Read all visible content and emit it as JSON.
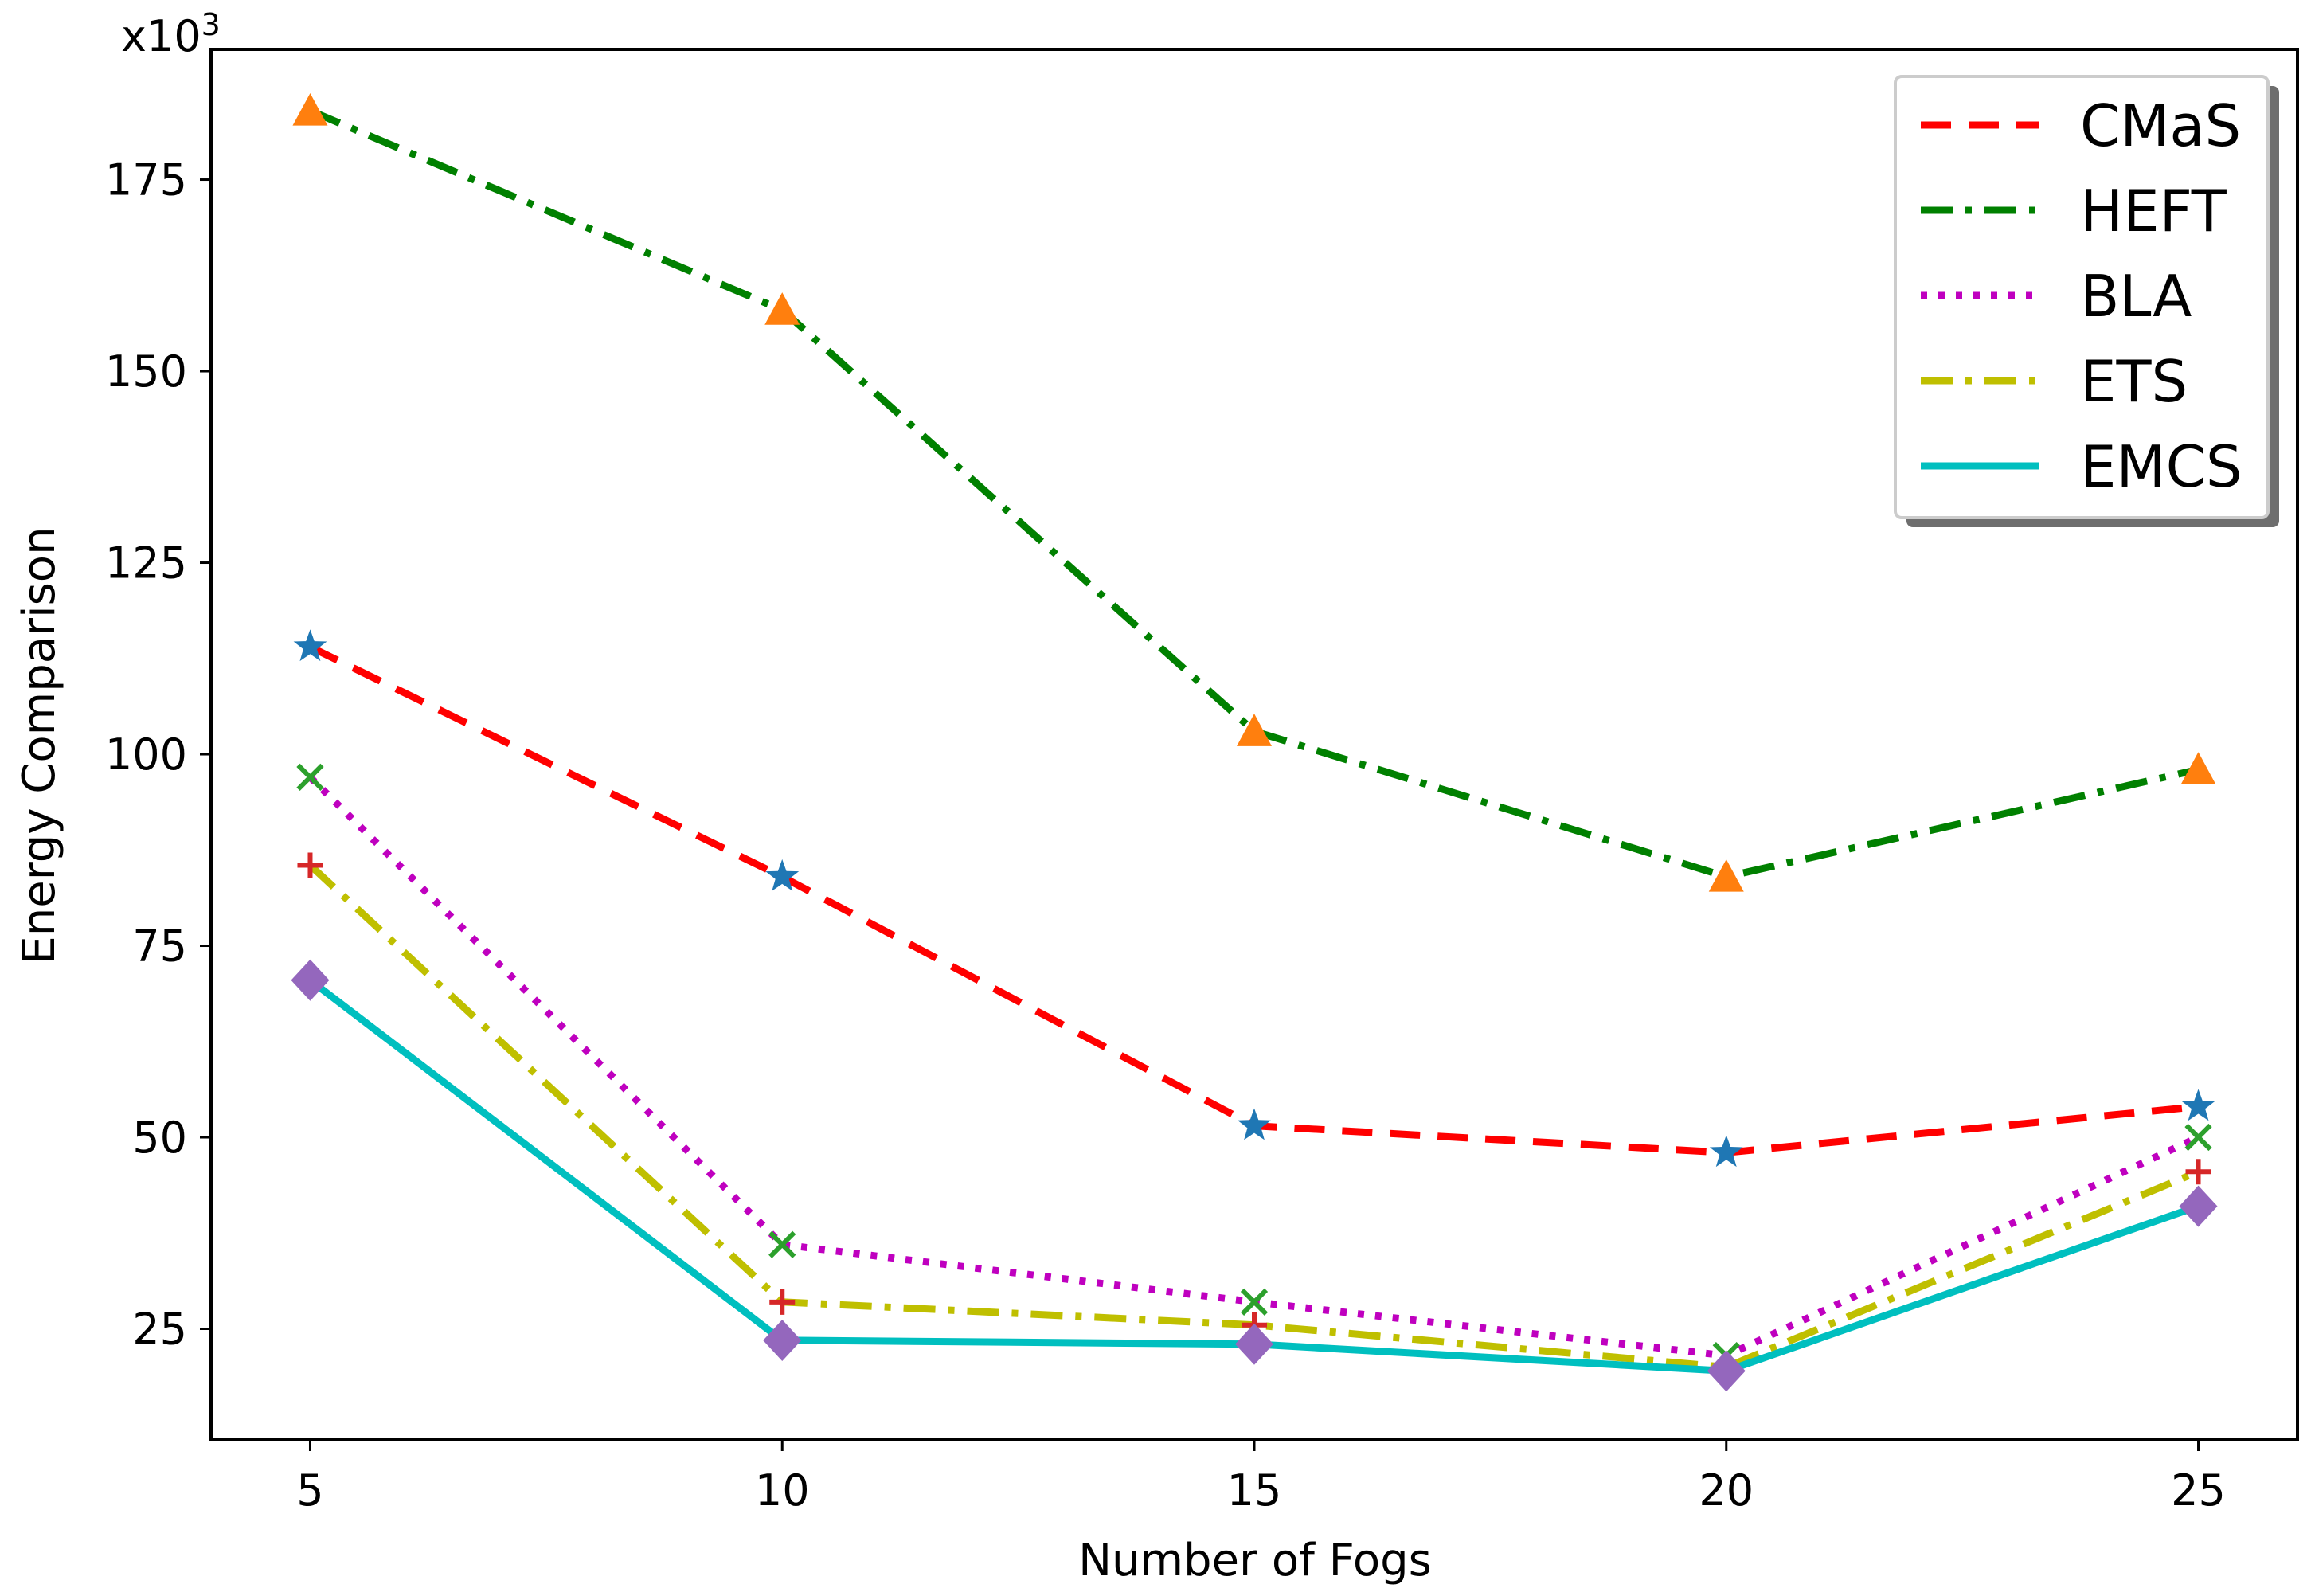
{
  "chart_data": {
    "type": "line",
    "title": "",
    "xlabel": "Number of Fogs",
    "ylabel": "Energy Comparison",
    "y_multiplier": {
      "base": "x10",
      "exponent": "3"
    },
    "x": [
      5,
      10,
      15,
      20,
      25
    ],
    "xlim": [
      3.95,
      26.05
    ],
    "ylim": [
      10.5,
      192
    ],
    "x_ticks": [
      5,
      10,
      15,
      20,
      25
    ],
    "y_ticks": [
      25,
      50,
      75,
      100,
      125,
      150,
      175
    ],
    "grid": false,
    "legend_position": "top-right",
    "series": [
      {
        "name": "CMaS",
        "values": [
          114,
          84,
          51.5,
          48,
          54
        ],
        "color": "#ff0000",
        "dash": "dash",
        "marker": "star",
        "marker_color": "#1f77b4"
      },
      {
        "name": "HEFT",
        "values": [
          184,
          158,
          103,
          84,
          98
        ],
        "color": "#008000",
        "dash": "dashdot",
        "marker": "triangle",
        "marker_color": "#ff7f0e"
      },
      {
        "name": "BLA",
        "values": [
          97,
          36,
          28.5,
          21.5,
          50
        ],
        "color": "#bf00bf",
        "dash": "dot",
        "marker": "x",
        "marker_color": "#2ca02c"
      },
      {
        "name": "ETS",
        "values": [
          85.5,
          28.5,
          25.5,
          20,
          45.5
        ],
        "color": "#bfbf00",
        "dash": "dashdot",
        "marker": "plus",
        "marker_color": "#d62728"
      },
      {
        "name": "EMCS",
        "values": [
          70.5,
          23.5,
          23,
          19.5,
          41
        ],
        "color": "#00bfbf",
        "dash": "solid",
        "marker": "diamond",
        "marker_color": "#9467bd"
      }
    ]
  }
}
